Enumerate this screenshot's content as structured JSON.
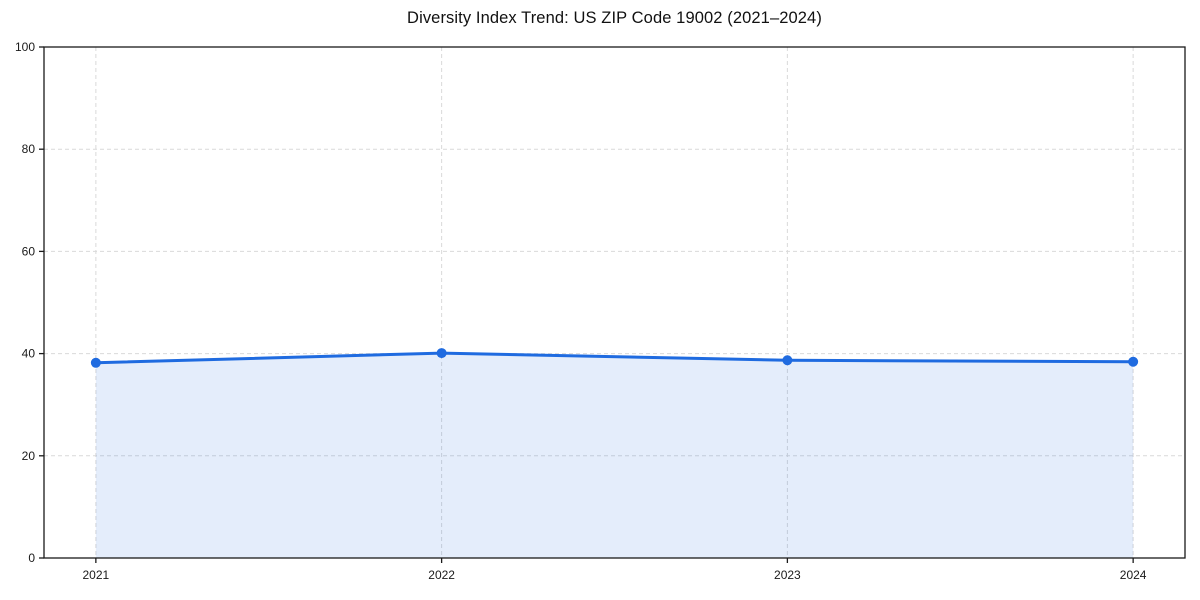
{
  "chart_data": {
    "type": "area",
    "title": "Diversity Index Trend: US ZIP Code 19002 (2021–2024)",
    "categories": [
      "2021",
      "2022",
      "2023",
      "2024"
    ],
    "series": [
      {
        "name": "Diversity Index",
        "values": [
          38.2,
          40.1,
          38.7,
          38.4
        ]
      }
    ],
    "xlabel": "",
    "ylabel": "",
    "ylim": [
      0,
      100
    ],
    "yticks": [
      0,
      20,
      40,
      60,
      80,
      100
    ],
    "grid": true,
    "grid_style": "dashed",
    "legend_position": "none",
    "marker": "circle",
    "colors": {
      "line": "#1f6be0",
      "marker": "#1f6be0",
      "fill": "#1f6be0",
      "fill_opacity": 0.12,
      "grid": "#d9d9d9",
      "spine": "#1a1a1a",
      "tick_text": "#1a1a1a",
      "background": "#ffffff"
    }
  }
}
